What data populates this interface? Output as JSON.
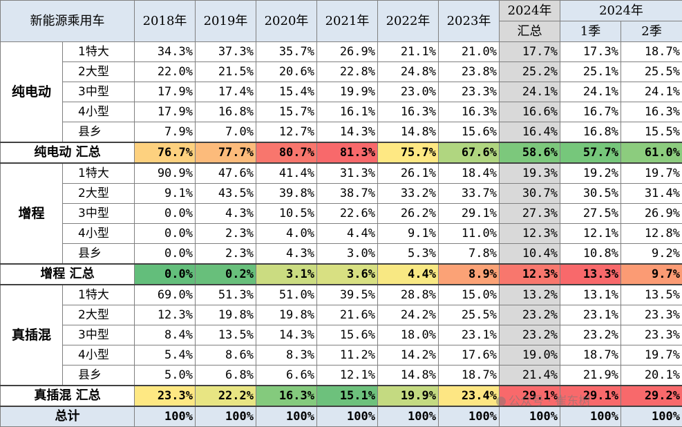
{
  "header": {
    "corner": "新能源乘用车",
    "years": [
      "2018年",
      "2019年",
      "2020年",
      "2021年",
      "2022年",
      "2023年"
    ],
    "ytd_line1": "2024年",
    "ytd_line2": "汇总",
    "quarter_group": "2024年",
    "quarters": [
      "1季",
      "2季"
    ]
  },
  "sections": [
    {
      "name": "纯电动",
      "rows": [
        {
          "label": "1特大",
          "values": [
            "34.3%",
            "37.3%",
            "35.7%",
            "26.9%",
            "21.1%",
            "21.0%",
            "17.7%",
            "17.3%",
            "18.7%"
          ]
        },
        {
          "label": "2大型",
          "values": [
            "22.0%",
            "21.5%",
            "20.6%",
            "22.8%",
            "24.8%",
            "23.8%",
            "25.2%",
            "25.1%",
            "25.5%"
          ]
        },
        {
          "label": "3中型",
          "values": [
            "17.9%",
            "17.4%",
            "15.4%",
            "19.9%",
            "23.0%",
            "23.3%",
            "24.1%",
            "24.1%",
            "24.1%"
          ]
        },
        {
          "label": "4小型",
          "values": [
            "17.9%",
            "16.8%",
            "15.7%",
            "16.1%",
            "16.3%",
            "16.3%",
            "16.6%",
            "16.7%",
            "16.3%"
          ]
        },
        {
          "label": "县乡",
          "values": [
            "7.9%",
            "7.0%",
            "12.7%",
            "14.3%",
            "14.8%",
            "15.6%",
            "16.4%",
            "16.8%",
            "15.5%"
          ]
        }
      ],
      "summary": {
        "label": "纯电动 汇总",
        "values": [
          "76.7%",
          "77.7%",
          "80.7%",
          "81.3%",
          "75.7%",
          "67.6%",
          "58.6%",
          "57.7%",
          "61.0%"
        ],
        "colors": [
          "#fdd17f",
          "#fcbb7b",
          "#f8766d",
          "#f8696b",
          "#fee883",
          "#b0d680",
          "#7cc87c",
          "#76c77b",
          "#8ccc7e"
        ]
      }
    },
    {
      "name": "增程",
      "rows": [
        {
          "label": "1特大",
          "values": [
            "90.9%",
            "47.6%",
            "41.4%",
            "31.3%",
            "26.1%",
            "18.4%",
            "19.3%",
            "19.2%",
            "19.7%"
          ]
        },
        {
          "label": "2大型",
          "values": [
            "9.1%",
            "43.5%",
            "39.8%",
            "38.7%",
            "33.2%",
            "33.7%",
            "30.7%",
            "30.5%",
            "31.4%"
          ]
        },
        {
          "label": "3中型",
          "values": [
            "0.0%",
            "4.3%",
            "10.5%",
            "22.6%",
            "26.2%",
            "29.1%",
            "27.3%",
            "27.5%",
            "26.9%"
          ]
        },
        {
          "label": "4小型",
          "values": [
            "0.0%",
            "2.3%",
            "4.0%",
            "4.4%",
            "9.1%",
            "11.0%",
            "12.3%",
            "12.1%",
            "12.8%"
          ]
        },
        {
          "label": "县乡",
          "values": [
            "0.0%",
            "2.3%",
            "4.3%",
            "3.0%",
            "5.3%",
            "7.8%",
            "10.4%",
            "10.8%",
            "9.2%"
          ]
        }
      ],
      "summary": {
        "label": "增程 汇总",
        "values": [
          "0.0%",
          "0.2%",
          "3.1%",
          "3.6%",
          "4.4%",
          "8.9%",
          "12.3%",
          "13.3%",
          "9.7%"
        ],
        "colors": [
          "#63be7b",
          "#68bf7b",
          "#cbdc81",
          "#d8e082",
          "#f8e883",
          "#fba276",
          "#f8776d",
          "#f8696b",
          "#fb9b74"
        ]
      }
    },
    {
      "name": "真插混",
      "rows": [
        {
          "label": "1特大",
          "values": [
            "69.0%",
            "51.3%",
            "51.0%",
            "39.5%",
            "28.8%",
            "15.0%",
            "13.2%",
            "13.1%",
            "13.5%"
          ]
        },
        {
          "label": "2大型",
          "values": [
            "12.3%",
            "19.8%",
            "19.8%",
            "21.6%",
            "24.2%",
            "25.5%",
            "23.2%",
            "23.1%",
            "23.3%"
          ]
        },
        {
          "label": "3中型",
          "values": [
            "8.4%",
            "13.5%",
            "14.3%",
            "15.6%",
            "18.0%",
            "23.1%",
            "23.2%",
            "23.2%",
            "23.3%"
          ]
        },
        {
          "label": "4小型",
          "values": [
            "5.4%",
            "8.6%",
            "8.3%",
            "11.2%",
            "14.2%",
            "17.6%",
            "19.0%",
            "18.7%",
            "19.7%"
          ]
        },
        {
          "label": "县乡",
          "values": [
            "5.0%",
            "6.8%",
            "6.6%",
            "12.1%",
            "14.8%",
            "18.7%",
            "21.4%",
            "21.9%",
            "20.1%"
          ]
        }
      ],
      "summary": {
        "label": "真插混 汇总",
        "values": [
          "23.3%",
          "22.2%",
          "16.3%",
          "15.1%",
          "19.9%",
          "23.4%",
          "29.1%",
          "29.1%",
          "29.2%"
        ],
        "colors": [
          "#fee883",
          "#e8e583",
          "#84ca7d",
          "#6dc17c",
          "#c4da81",
          "#fde683",
          "#f8696b",
          "#f8696b",
          "#f8696b"
        ]
      }
    }
  ],
  "total": {
    "label": "总计",
    "values": [
      "100%",
      "100%",
      "100%",
      "100%",
      "100%",
      "100%",
      "100%",
      "100%",
      "100%"
    ]
  },
  "watermark": "公众号 · 崔东树"
}
